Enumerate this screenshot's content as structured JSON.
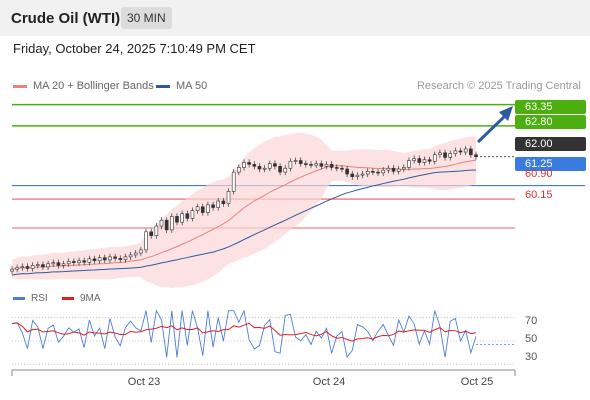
{
  "header": {
    "instrument": "Crude Oil (WTI)",
    "timeframe": "30 MIN"
  },
  "datetime": "Friday, October 24, 2025 7:10:49 PM CET",
  "legend": {
    "bb_label": "MA 20 + Bollinger Bands",
    "bb_color": "#f08080",
    "ma50_label": "MA 50",
    "ma50_color": "#2d5aa0",
    "credit": "Research © 2025 Trading Central"
  },
  "levels": {
    "resistance2": "63.35",
    "resistance1": "62.80",
    "current": "62.00",
    "pivot": "61.25",
    "support1": "60.90",
    "support2": "60.15",
    "resistance_color": "#4caf10",
    "pivot_color": "#3a7be0",
    "support_color": "#e03030",
    "current_color": "#333333"
  },
  "rsi": {
    "rsi_label": "RSI",
    "rsi_color": "#4a7fd8",
    "ma_label": "9MA",
    "ma_color": "#e02020",
    "levels": [
      "70",
      "50",
      "30"
    ]
  },
  "x_axis": {
    "labels": [
      "Oct 23",
      "Oct 24",
      "Oct 25"
    ]
  },
  "chart_data": {
    "type": "line",
    "description_series": "Candles of WTI 30-minute price; MA 20 with Bollinger Bands; MA 50",
    "y_price_range": [
      58.8,
      63.6
    ],
    "price_levels": [
      63.35,
      62.8,
      62.0,
      61.25,
      60.9,
      60.15
    ],
    "candles_close": [
      59.08,
      59.12,
      59.15,
      59.1,
      59.18,
      59.2,
      59.14,
      59.22,
      59.25,
      59.18,
      59.22,
      59.28,
      59.25,
      59.3,
      59.26,
      59.35,
      59.3,
      59.38,
      59.32,
      59.4,
      59.36,
      59.33,
      59.4,
      59.45,
      59.5,
      59.58,
      60.05,
      59.95,
      60.2,
      60.35,
      60.1,
      60.45,
      60.3,
      60.52,
      60.4,
      60.6,
      60.7,
      60.55,
      60.75,
      60.68,
      60.85,
      60.78,
      61.1,
      61.6,
      61.72,
      61.85,
      61.8,
      61.75,
      61.68,
      61.7,
      61.82,
      61.75,
      61.6,
      61.7,
      61.88,
      61.9,
      61.82,
      61.8,
      61.78,
      61.82,
      61.75,
      61.8,
      61.72,
      61.7,
      61.68,
      61.55,
      61.48,
      61.52,
      61.55,
      61.62,
      61.6,
      61.58,
      61.65,
      61.7,
      61.62,
      61.68,
      61.72,
      61.9,
      61.95,
      61.85,
      61.92,
      61.88,
      62.05,
      62.1,
      61.98,
      62.08,
      62.15,
      62.12,
      62.2,
      62.05,
      62.0
    ],
    "rsi_range": [
      20,
      80
    ],
    "rsi_levels": [
      70,
      50,
      30
    ],
    "x_ticks": [
      "Oct 23",
      "Oct 24",
      "Oct 25"
    ]
  }
}
